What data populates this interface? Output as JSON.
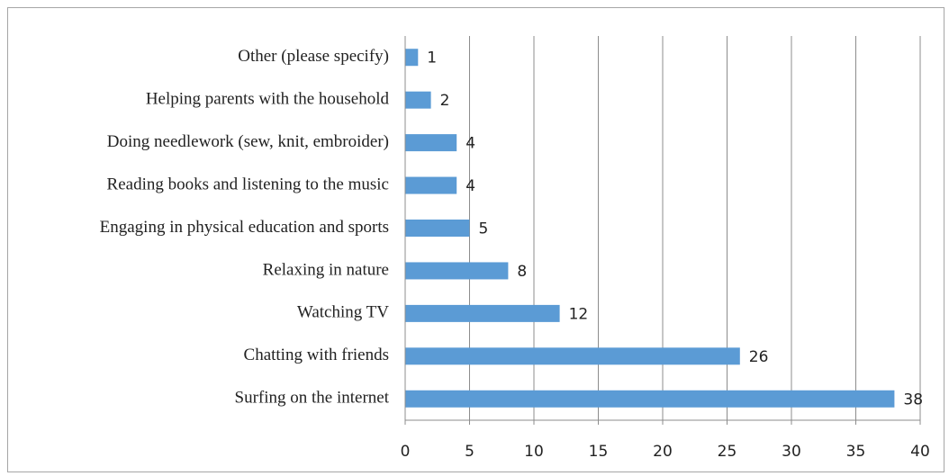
{
  "chart_data": {
    "type": "bar",
    "orientation": "horizontal",
    "categories": [
      "Other (please specify)",
      "Helping parents with the household",
      "Doing needlework (sew, knit, embroider)",
      "Reading books and listening to the music",
      "Engaging in physical education and sports",
      "Relaxing in nature",
      "Watching TV",
      "Chatting with friends",
      "Surfing on the internet"
    ],
    "values": [
      1,
      2,
      4,
      4,
      5,
      8,
      12,
      26,
      38
    ],
    "color": "#5b9bd5",
    "xlim": [
      0,
      40
    ],
    "xticks": [
      0,
      5,
      10,
      15,
      20,
      25,
      30,
      35,
      40
    ],
    "grid": true
  }
}
